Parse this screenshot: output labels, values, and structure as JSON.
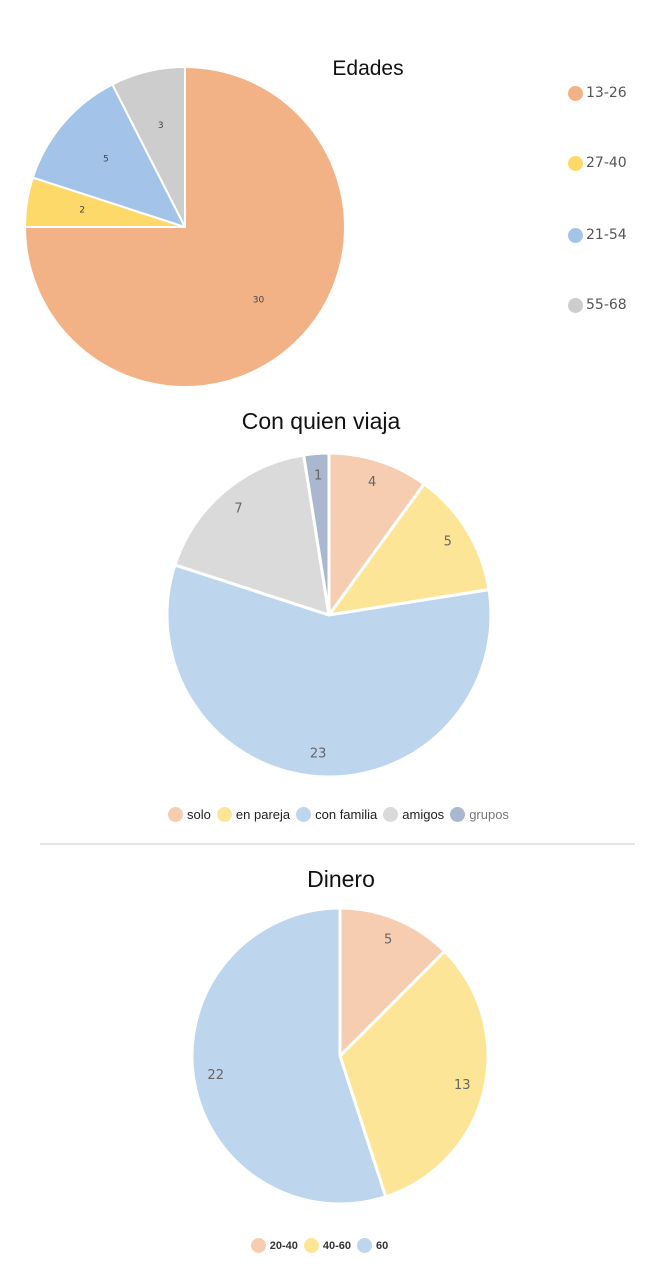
{
  "chart_data": [
    {
      "type": "pie",
      "title": "Edades",
      "categories": [
        "13-26",
        "27-40",
        "21-54",
        "55-68"
      ],
      "values": [
        30,
        2,
        5,
        3
      ],
      "colors": [
        "#F3B286",
        "#FDD96A",
        "#A3C4E8",
        "#CDCDCD"
      ],
      "legend": "right"
    },
    {
      "type": "pie",
      "title": "Con quien viaja",
      "categories": [
        "solo",
        "en pareja",
        "con familia",
        "amigos",
        "grupos"
      ],
      "values": [
        4,
        5,
        23,
        7,
        1
      ],
      "colors": [
        "#F6CDB1",
        "#FDE597",
        "#BDD6EE",
        "#DADADA",
        "#A9B8CF"
      ],
      "legend": "bottom"
    },
    {
      "type": "pie",
      "title": "Dinero",
      "categories": [
        "20-40",
        "40-60",
        "60"
      ],
      "values": [
        5,
        13,
        22
      ],
      "colors": [
        "#F6CDB1",
        "#FDE597",
        "#BDD6EE"
      ],
      "legend": "bottom"
    }
  ]
}
